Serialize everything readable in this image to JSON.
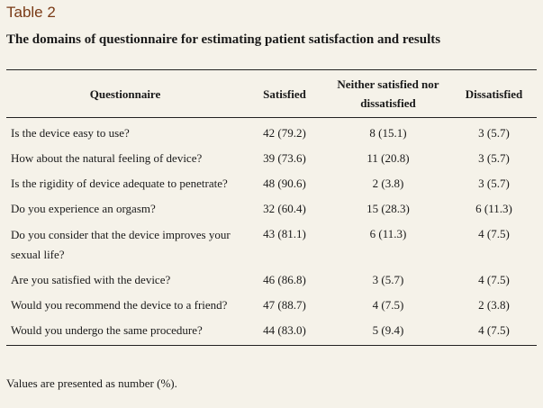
{
  "table_label": "Table 2",
  "caption": "The domains of questionnaire for estimating patient satisfaction and results",
  "headers": {
    "questionnaire": "Questionnaire",
    "satisfied": "Satisfied",
    "neither_line1": "Neither satisfied nor",
    "neither_line2": "dissatisfied",
    "dissatisfied": "Dissatisfied"
  },
  "rows": [
    {
      "question": "Is the device easy to use?",
      "satisfied": "42 (79.2)",
      "neither": "8 (15.1)",
      "dissatisfied": "3 (5.7)"
    },
    {
      "question": "How about the natural feeling of device?",
      "satisfied": "39 (73.6)",
      "neither": "11 (20.8)",
      "dissatisfied": "3 (5.7)"
    },
    {
      "question": "Is the rigidity of device adequate to penetrate?",
      "satisfied": "48 (90.6)",
      "neither": "2 (3.8)",
      "dissatisfied": "3 (5.7)"
    },
    {
      "question": "Do you experience an orgasm?",
      "satisfied": "32 (60.4)",
      "neither": "15 (28.3)",
      "dissatisfied": "6 (11.3)"
    },
    {
      "question_line1": "Do you consider that the device improves your",
      "question_line2": "sexual life?",
      "satisfied": "43 (81.1)",
      "neither": "6 (11.3)",
      "dissatisfied": "4 (7.5)"
    },
    {
      "question": "Are you satisfied with the device?",
      "satisfied": "46 (86.8)",
      "neither": "3 (5.7)",
      "dissatisfied": "4 (7.5)"
    },
    {
      "question": "Would you recommend the device to a friend?",
      "satisfied": "47 (88.7)",
      "neither": "4 (7.5)",
      "dissatisfied": "2 (3.8)"
    },
    {
      "question": "Would you undergo the same procedure?",
      "satisfied": "44 (83.0)",
      "neither": "5 (9.4)",
      "dissatisfied": "4 (7.5)"
    }
  ],
  "footnote": "Values are presented as number (%).",
  "colors": {
    "background": "#f5f2e9",
    "label": "#7a3b17",
    "text": "#1a1a1a"
  }
}
